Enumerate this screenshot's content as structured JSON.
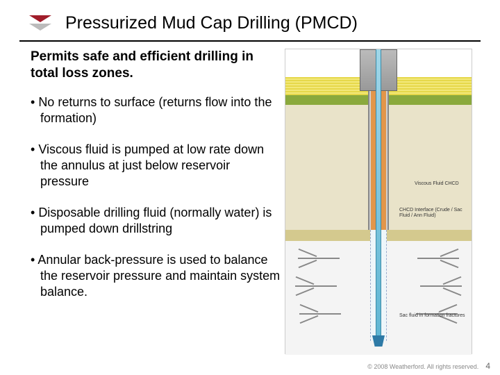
{
  "title": "Pressurized Mud Cap Drilling (PMCD)",
  "subtitle": "Permits safe and efficient drilling in total loss zones.",
  "bullets": [
    "No returns to surface (returns flow into the formation)",
    "Viscous fluid is pumped at low rate down the annulus at just below reservoir pressure",
    "Disposable drilling fluid (normally water) is pumped down drillstring",
    "Annular back-pressure is used to balance the reservoir pressure and maintain system balance."
  ],
  "diagram": {
    "labels": {
      "viscous_fluid": "Viscous Fluid CHCD",
      "interface": "CHCD Interface (Crude / Sac Fluid / Ann Fluid)",
      "fractures": "Sac fluid in formation fractures"
    },
    "colors": {
      "surface_layer": "#e6d84a",
      "mud_line": "#8aa93c",
      "upper_formation": "#e9e3c9",
      "shale": "#d4c98e",
      "lower_formation": "#f4f4f4",
      "annulus_fluid": "#e2964a",
      "drillstring_fluid": "#5fb6d4",
      "casing": "#d0d0d0",
      "fracture": "#888888"
    }
  },
  "footer": {
    "copyright": "© 2008 Weatherford. All rights reserved.",
    "page_number": "4"
  },
  "logo_colors": {
    "top": "#a01d2a",
    "bottom": "#bbbbbb"
  }
}
